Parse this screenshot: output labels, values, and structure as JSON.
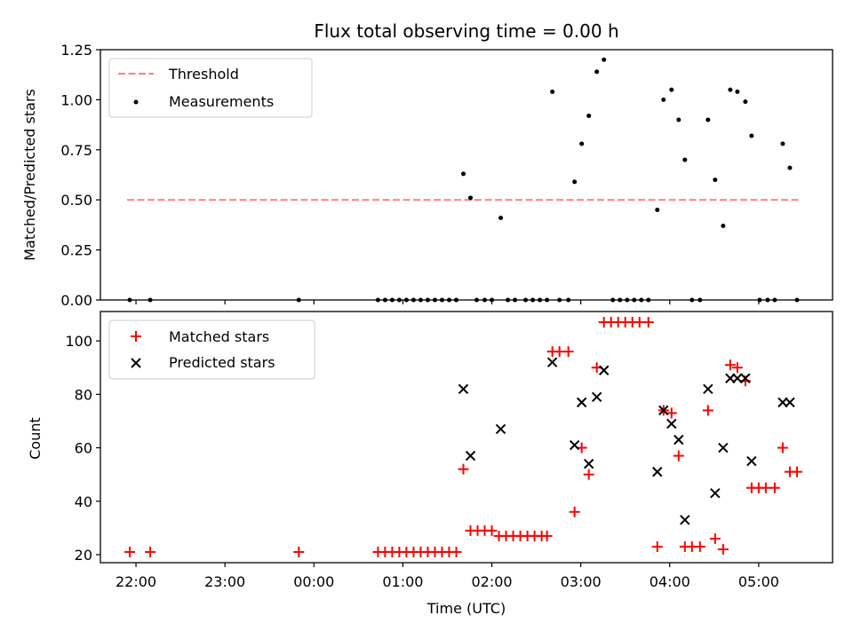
{
  "chart_data": [
    {
      "type": "scatter",
      "title": "Flux total observing time = 0.00 h",
      "xlabel": "",
      "ylabel": "Matched/Predicted stars",
      "xlim": [
        -2.4,
        5.83
      ],
      "ylim": [
        0,
        1.25
      ],
      "yticks": [
        "0.00",
        "0.25",
        "0.50",
        "0.75",
        "1.00",
        "1.25"
      ],
      "legend_position": "upper-left",
      "threshold": {
        "name": "Threshold",
        "value": 0.5,
        "x": [
          -2.1,
          5.45
        ],
        "color": "#ff7f7f"
      },
      "series": [
        {
          "name": "Measurements",
          "color": "#000000",
          "points": [
            [
              -2.07,
              0
            ],
            [
              -1.84,
              0
            ],
            [
              -0.17,
              0
            ],
            [
              0.72,
              0
            ],
            [
              0.8,
              0
            ],
            [
              0.88,
              0
            ],
            [
              0.96,
              0
            ],
            [
              1.04,
              0
            ],
            [
              1.12,
              0
            ],
            [
              1.2,
              0
            ],
            [
              1.28,
              0
            ],
            [
              1.36,
              0
            ],
            [
              1.44,
              0
            ],
            [
              1.52,
              0
            ],
            [
              1.6,
              0
            ],
            [
              1.68,
              0.63
            ],
            [
              1.76,
              0.51
            ],
            [
              1.83,
              0
            ],
            [
              1.92,
              0
            ],
            [
              2.0,
              0
            ],
            [
              2.1,
              0.41
            ],
            [
              2.18,
              0
            ],
            [
              2.26,
              0
            ],
            [
              2.38,
              0
            ],
            [
              2.46,
              0
            ],
            [
              2.54,
              0
            ],
            [
              2.62,
              0
            ],
            [
              2.68,
              1.04
            ],
            [
              2.76,
              0
            ],
            [
              2.86,
              0
            ],
            [
              2.93,
              0.59
            ],
            [
              3.01,
              0.78
            ],
            [
              3.09,
              0.92
            ],
            [
              3.18,
              1.14
            ],
            [
              3.26,
              1.2
            ],
            [
              3.36,
              0
            ],
            [
              3.44,
              0
            ],
            [
              3.52,
              0
            ],
            [
              3.6,
              0
            ],
            [
              3.68,
              0
            ],
            [
              3.76,
              0
            ],
            [
              3.86,
              0.45
            ],
            [
              3.93,
              1.0
            ],
            [
              4.02,
              1.05
            ],
            [
              4.1,
              0.9
            ],
            [
              4.17,
              0.7
            ],
            [
              4.25,
              0
            ],
            [
              4.34,
              0
            ],
            [
              4.43,
              0.9
            ],
            [
              4.51,
              0.6
            ],
            [
              4.6,
              0.37
            ],
            [
              4.68,
              1.05
            ],
            [
              4.76,
              1.04
            ],
            [
              4.85,
              0.99
            ],
            [
              4.92,
              0.82
            ],
            [
              5.01,
              0
            ],
            [
              5.1,
              0
            ],
            [
              5.18,
              0
            ],
            [
              5.27,
              0.78
            ],
            [
              5.35,
              0.66
            ],
            [
              5.43,
              0
            ]
          ]
        }
      ]
    },
    {
      "type": "scatter",
      "title": "",
      "xlabel": "Time (UTC)",
      "ylabel": "Count",
      "xlim": [
        -2.4,
        5.83
      ],
      "ylim": [
        17,
        111
      ],
      "yticks": [
        "20",
        "40",
        "60",
        "80",
        "100"
      ],
      "xticks": [
        "22:00",
        "23:00",
        "00:00",
        "01:00",
        "02:00",
        "03:00",
        "04:00",
        "05:00"
      ],
      "xtick_values": [
        -2,
        -1,
        0,
        1,
        2,
        3,
        4,
        5
      ],
      "legend_position": "upper-left",
      "series": [
        {
          "name": "Matched stars",
          "marker": "+",
          "color": "#ff0000",
          "points": [
            [
              -2.07,
              21
            ],
            [
              -1.84,
              21
            ],
            [
              -0.17,
              21
            ],
            [
              0.72,
              21
            ],
            [
              0.8,
              21
            ],
            [
              0.88,
              21
            ],
            [
              0.96,
              21
            ],
            [
              1.04,
              21
            ],
            [
              1.12,
              21
            ],
            [
              1.2,
              21
            ],
            [
              1.28,
              21
            ],
            [
              1.36,
              21
            ],
            [
              1.44,
              21
            ],
            [
              1.52,
              21
            ],
            [
              1.6,
              21
            ],
            [
              1.68,
              52
            ],
            [
              1.76,
              29
            ],
            [
              1.84,
              29
            ],
            [
              1.92,
              29
            ],
            [
              2.0,
              29
            ],
            [
              2.08,
              27
            ],
            [
              2.16,
              27
            ],
            [
              2.24,
              27
            ],
            [
              2.32,
              27
            ],
            [
              2.4,
              27
            ],
            [
              2.48,
              27
            ],
            [
              2.56,
              27
            ],
            [
              2.62,
              27
            ],
            [
              2.68,
              96
            ],
            [
              2.76,
              96
            ],
            [
              2.86,
              96
            ],
            [
              2.93,
              36
            ],
            [
              3.01,
              60
            ],
            [
              3.09,
              50
            ],
            [
              3.18,
              90
            ],
            [
              3.26,
              107
            ],
            [
              3.34,
              107
            ],
            [
              3.42,
              107
            ],
            [
              3.5,
              107
            ],
            [
              3.58,
              107
            ],
            [
              3.66,
              107
            ],
            [
              3.76,
              107
            ],
            [
              3.86,
              23
            ],
            [
              3.93,
              74
            ],
            [
              4.02,
              73
            ],
            [
              4.1,
              57
            ],
            [
              4.17,
              23
            ],
            [
              4.25,
              23
            ],
            [
              4.34,
              23
            ],
            [
              4.43,
              74
            ],
            [
              4.51,
              26
            ],
            [
              4.6,
              22
            ],
            [
              4.68,
              91
            ],
            [
              4.76,
              90
            ],
            [
              4.85,
              85
            ],
            [
              4.92,
              45
            ],
            [
              5.0,
              45
            ],
            [
              5.08,
              45
            ],
            [
              5.18,
              45
            ],
            [
              5.27,
              60
            ],
            [
              5.35,
              51
            ],
            [
              5.43,
              51
            ]
          ]
        },
        {
          "name": "Predicted stars",
          "marker": "x",
          "color": "#000000",
          "points": [
            [
              1.68,
              82
            ],
            [
              1.76,
              57
            ],
            [
              2.1,
              67
            ],
            [
              2.68,
              92
            ],
            [
              2.93,
              61
            ],
            [
              3.01,
              77
            ],
            [
              3.09,
              54
            ],
            [
              3.18,
              79
            ],
            [
              3.26,
              89
            ],
            [
              3.86,
              51
            ],
            [
              3.93,
              74
            ],
            [
              4.02,
              69
            ],
            [
              4.1,
              63
            ],
            [
              4.17,
              33
            ],
            [
              4.43,
              82
            ],
            [
              4.51,
              43
            ],
            [
              4.6,
              60
            ],
            [
              4.68,
              86
            ],
            [
              4.76,
              86
            ],
            [
              4.85,
              86
            ],
            [
              4.92,
              55
            ],
            [
              5.27,
              77
            ],
            [
              5.35,
              77
            ]
          ]
        }
      ]
    }
  ]
}
